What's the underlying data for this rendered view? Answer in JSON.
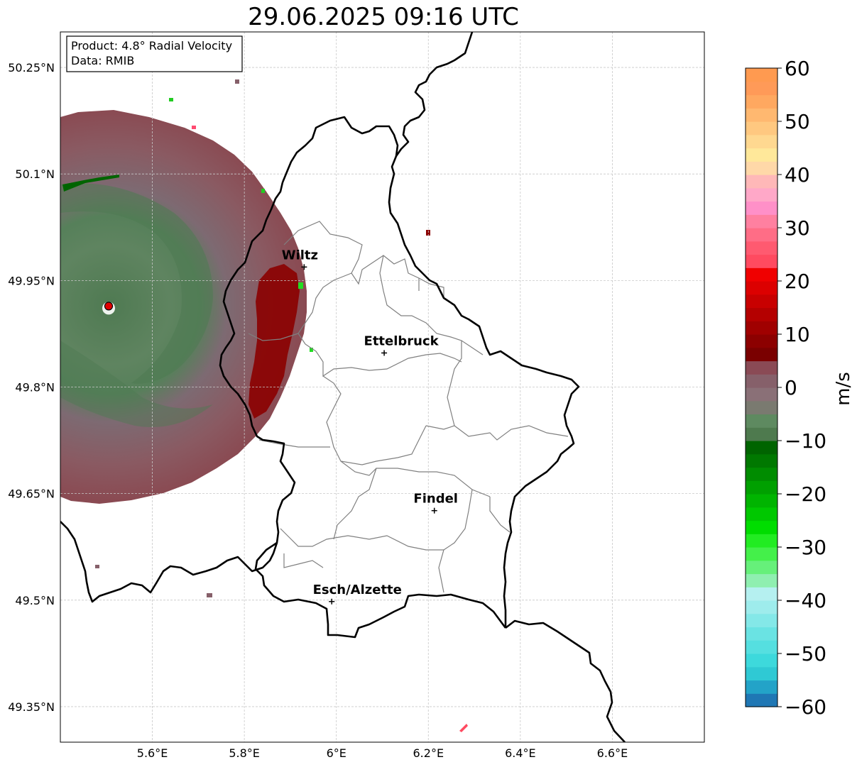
{
  "title": "29.06.2025 09:16 UTC",
  "info_box": {
    "product": "Product: 4.8° Radial Velocity",
    "data": "Data: RMIB"
  },
  "map": {
    "lon_range": [
      5.4,
      6.8
    ],
    "lat_range": [
      49.3,
      50.3
    ],
    "lon_ticks": [
      {
        "value": 5.6,
        "label": "5.6°E"
      },
      {
        "value": 5.8,
        "label": "5.8°E"
      },
      {
        "value": 6.0,
        "label": "6°E"
      },
      {
        "value": 6.2,
        "label": "6.2°E"
      },
      {
        "value": 6.4,
        "label": "6.4°E"
      },
      {
        "value": 6.6,
        "label": "6.6°E"
      }
    ],
    "lat_ticks": [
      {
        "value": 50.25,
        "label": "50.25°N"
      },
      {
        "value": 50.1,
        "label": "50.1°N"
      },
      {
        "value": 49.95,
        "label": "49.95°N"
      },
      {
        "value": 49.8,
        "label": "49.8°N"
      },
      {
        "value": 49.65,
        "label": "49.65°N"
      },
      {
        "value": 49.5,
        "label": "49.5°N"
      },
      {
        "value": 49.35,
        "label": "49.35°N"
      }
    ],
    "grid": true,
    "radar_site": {
      "lon": 5.505,
      "lat": 49.914
    },
    "cities": [
      {
        "name": "Wiltz",
        "lon": 5.93,
        "lat": 49.969
      },
      {
        "name": "Ettelbruck",
        "lon": 6.104,
        "lat": 49.848
      },
      {
        "name": "Findel",
        "lon": 6.213,
        "lat": 49.626
      },
      {
        "name": "Esch/Alzette",
        "lon": 5.99,
        "lat": 49.498
      }
    ]
  },
  "colorbar": {
    "label": "m/s",
    "min": -60,
    "max": 60,
    "ticks": [
      {
        "value": 60,
        "label": "60"
      },
      {
        "value": 50,
        "label": "50"
      },
      {
        "value": 40,
        "label": "40"
      },
      {
        "value": 30,
        "label": "30"
      },
      {
        "value": 20,
        "label": "20"
      },
      {
        "value": 10,
        "label": "10"
      },
      {
        "value": 0,
        "label": "0"
      },
      {
        "value": -10,
        "label": "−10"
      },
      {
        "value": -20,
        "label": "−20"
      },
      {
        "value": -30,
        "label": "−30"
      },
      {
        "value": -40,
        "label": "−40"
      },
      {
        "value": -50,
        "label": "−50"
      },
      {
        "value": -60,
        "label": "−60"
      }
    ],
    "colors_bottom_to_top": [
      "#1f77b4",
      "#23a3c8",
      "#2fc9d4",
      "#3dd9dc",
      "#55dfe0",
      "#6ae3e3",
      "#84e8e8",
      "#9eecec",
      "#b5f0f0",
      "#8fefb0",
      "#66f07a",
      "#44f04a",
      "#22ec22",
      "#00dd00",
      "#00c800",
      "#00b400",
      "#00a000",
      "#008c00",
      "#007800",
      "#006400",
      "#4e7a4e",
      "#5e8a60",
      "#7a7a70",
      "#8a7077",
      "#86606a",
      "#8a4a55",
      "#7a0000",
      "#8c0000",
      "#a00000",
      "#b40000",
      "#c80000",
      "#dc0000",
      "#f00000",
      "#ff4a60",
      "#ff5a70",
      "#ff6d86",
      "#ff80a0",
      "#ff90c8",
      "#ffa8c8",
      "#ffb8b8",
      "#ffd8a8",
      "#ffe89a",
      "#ffd890",
      "#ffc880",
      "#ffb870",
      "#ffa860",
      "#ff9a58",
      "#ff9a50"
    ]
  },
  "colors": {
    "inbound": "#5a7e5a",
    "outbound": "#8a5a62",
    "strong_outbound": "#8b0000",
    "border": "#000000",
    "district": "#808080",
    "radar_marker": "#e00000"
  }
}
